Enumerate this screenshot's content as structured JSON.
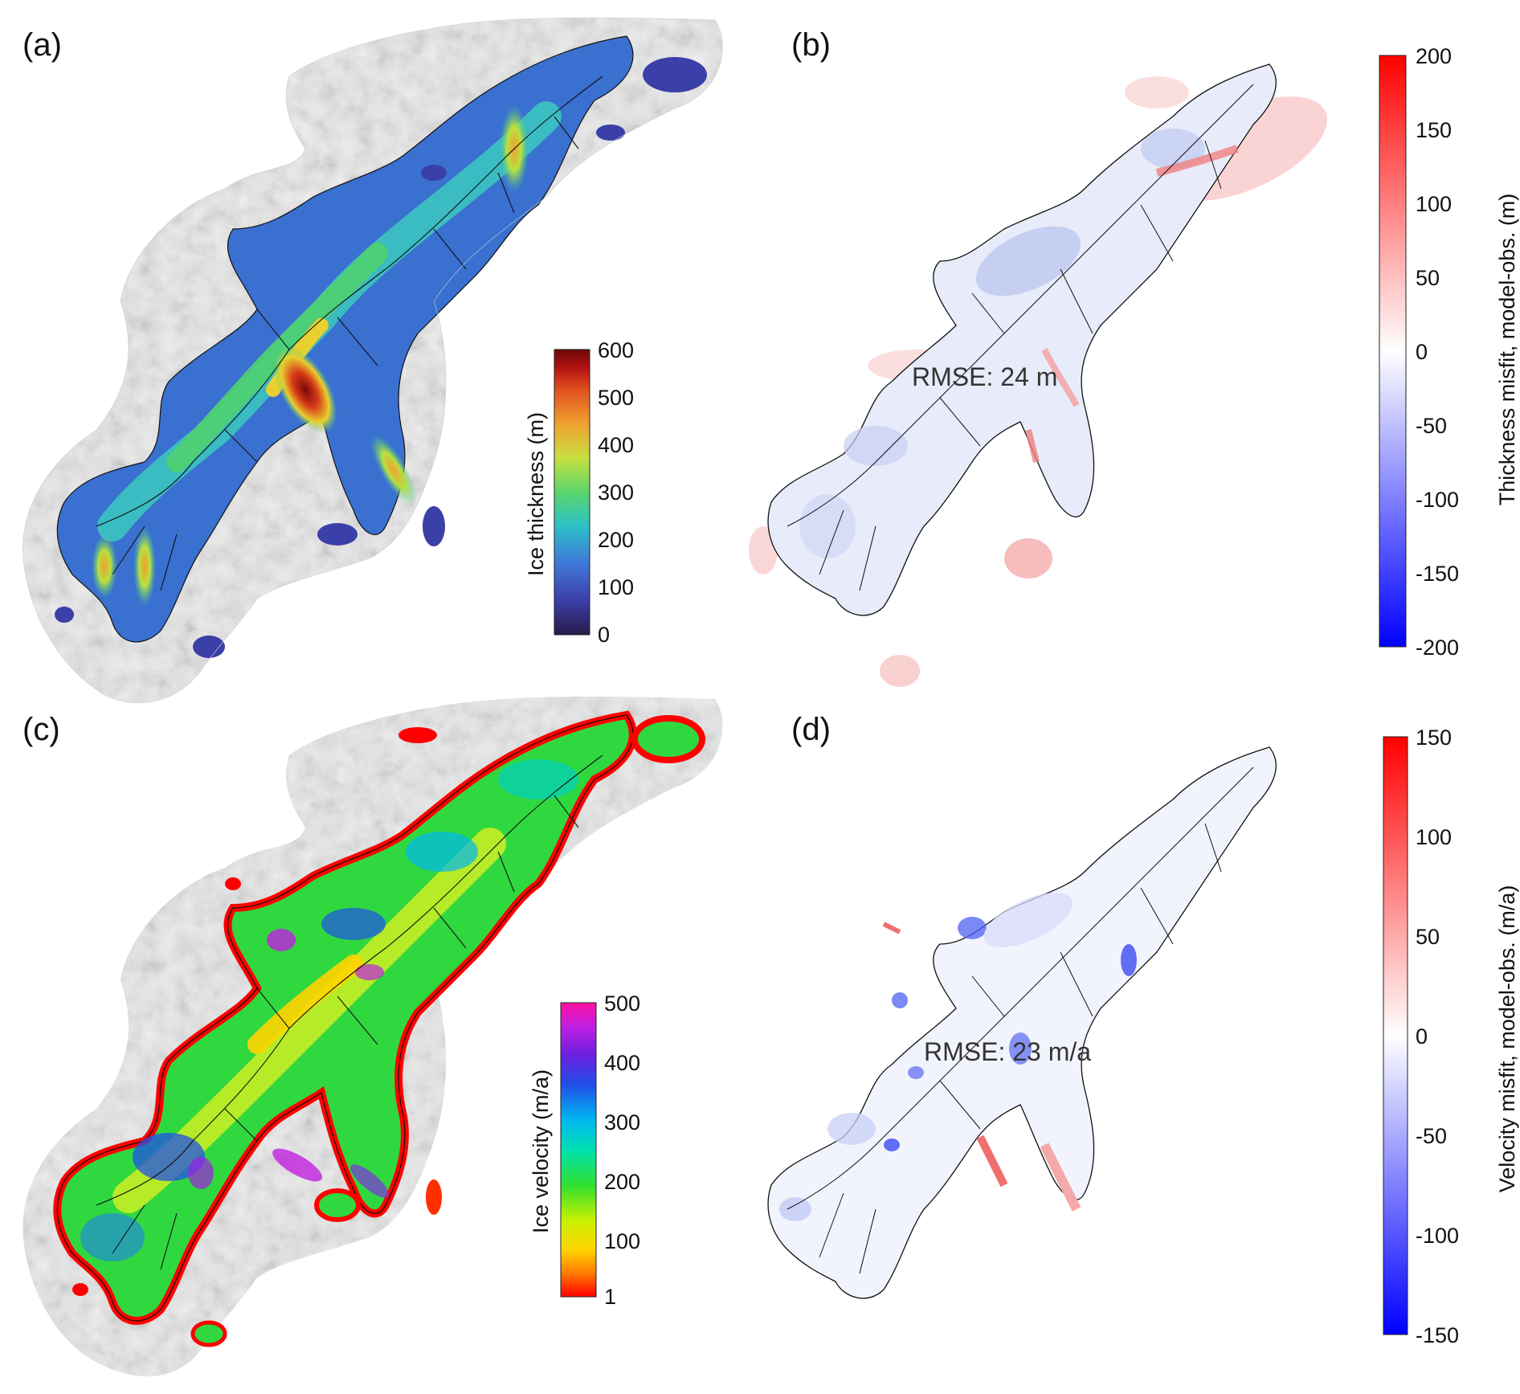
{
  "panels": {
    "a": {
      "label": "(a)",
      "colorbar": {
        "title": "Ice thickness (m)",
        "ticks": [
          "600",
          "500",
          "400",
          "300",
          "200",
          "100",
          "0"
        ]
      }
    },
    "b": {
      "label": "(b)",
      "rmse": "RMSE: 24 m",
      "colorbar": {
        "title": "Thickness misfit, model-obs. (m)",
        "ticks": [
          "200",
          "150",
          "100",
          "50",
          "0",
          "-50",
          "-100",
          "-150",
          "-200"
        ]
      }
    },
    "c": {
      "label": "(c)",
      "colorbar": {
        "title": "Ice velocity (m/a)",
        "ticks": [
          "500",
          "400",
          "300",
          "200",
          "100",
          "1"
        ]
      }
    },
    "d": {
      "label": "(d)",
      "rmse": "RMSE: 23 m/a",
      "colorbar": {
        "title": "Velocity misfit, model-obs. (m/a)",
        "ticks": [
          "150",
          "100",
          "50",
          "0",
          "-50",
          "-100",
          "-150"
        ]
      }
    }
  },
  "colors": {
    "thickness_scale": [
      "#2a1a4a",
      "#3b3fa8",
      "#3f78d8",
      "#2cc0c8",
      "#5ad66a",
      "#c8e040",
      "#f0a030",
      "#e05020",
      "#b01010",
      "#6a0a0a"
    ],
    "velocity_scale": [
      "#ff0000",
      "#ff7a00",
      "#ffd400",
      "#c8f000",
      "#30e030",
      "#00e0b0",
      "#00b8f0",
      "#2050e8",
      "#6a20e0",
      "#c020e0",
      "#ff10a0"
    ],
    "misfit_scale": [
      "#0000ff",
      "#ffffff",
      "#ff0000"
    ]
  }
}
